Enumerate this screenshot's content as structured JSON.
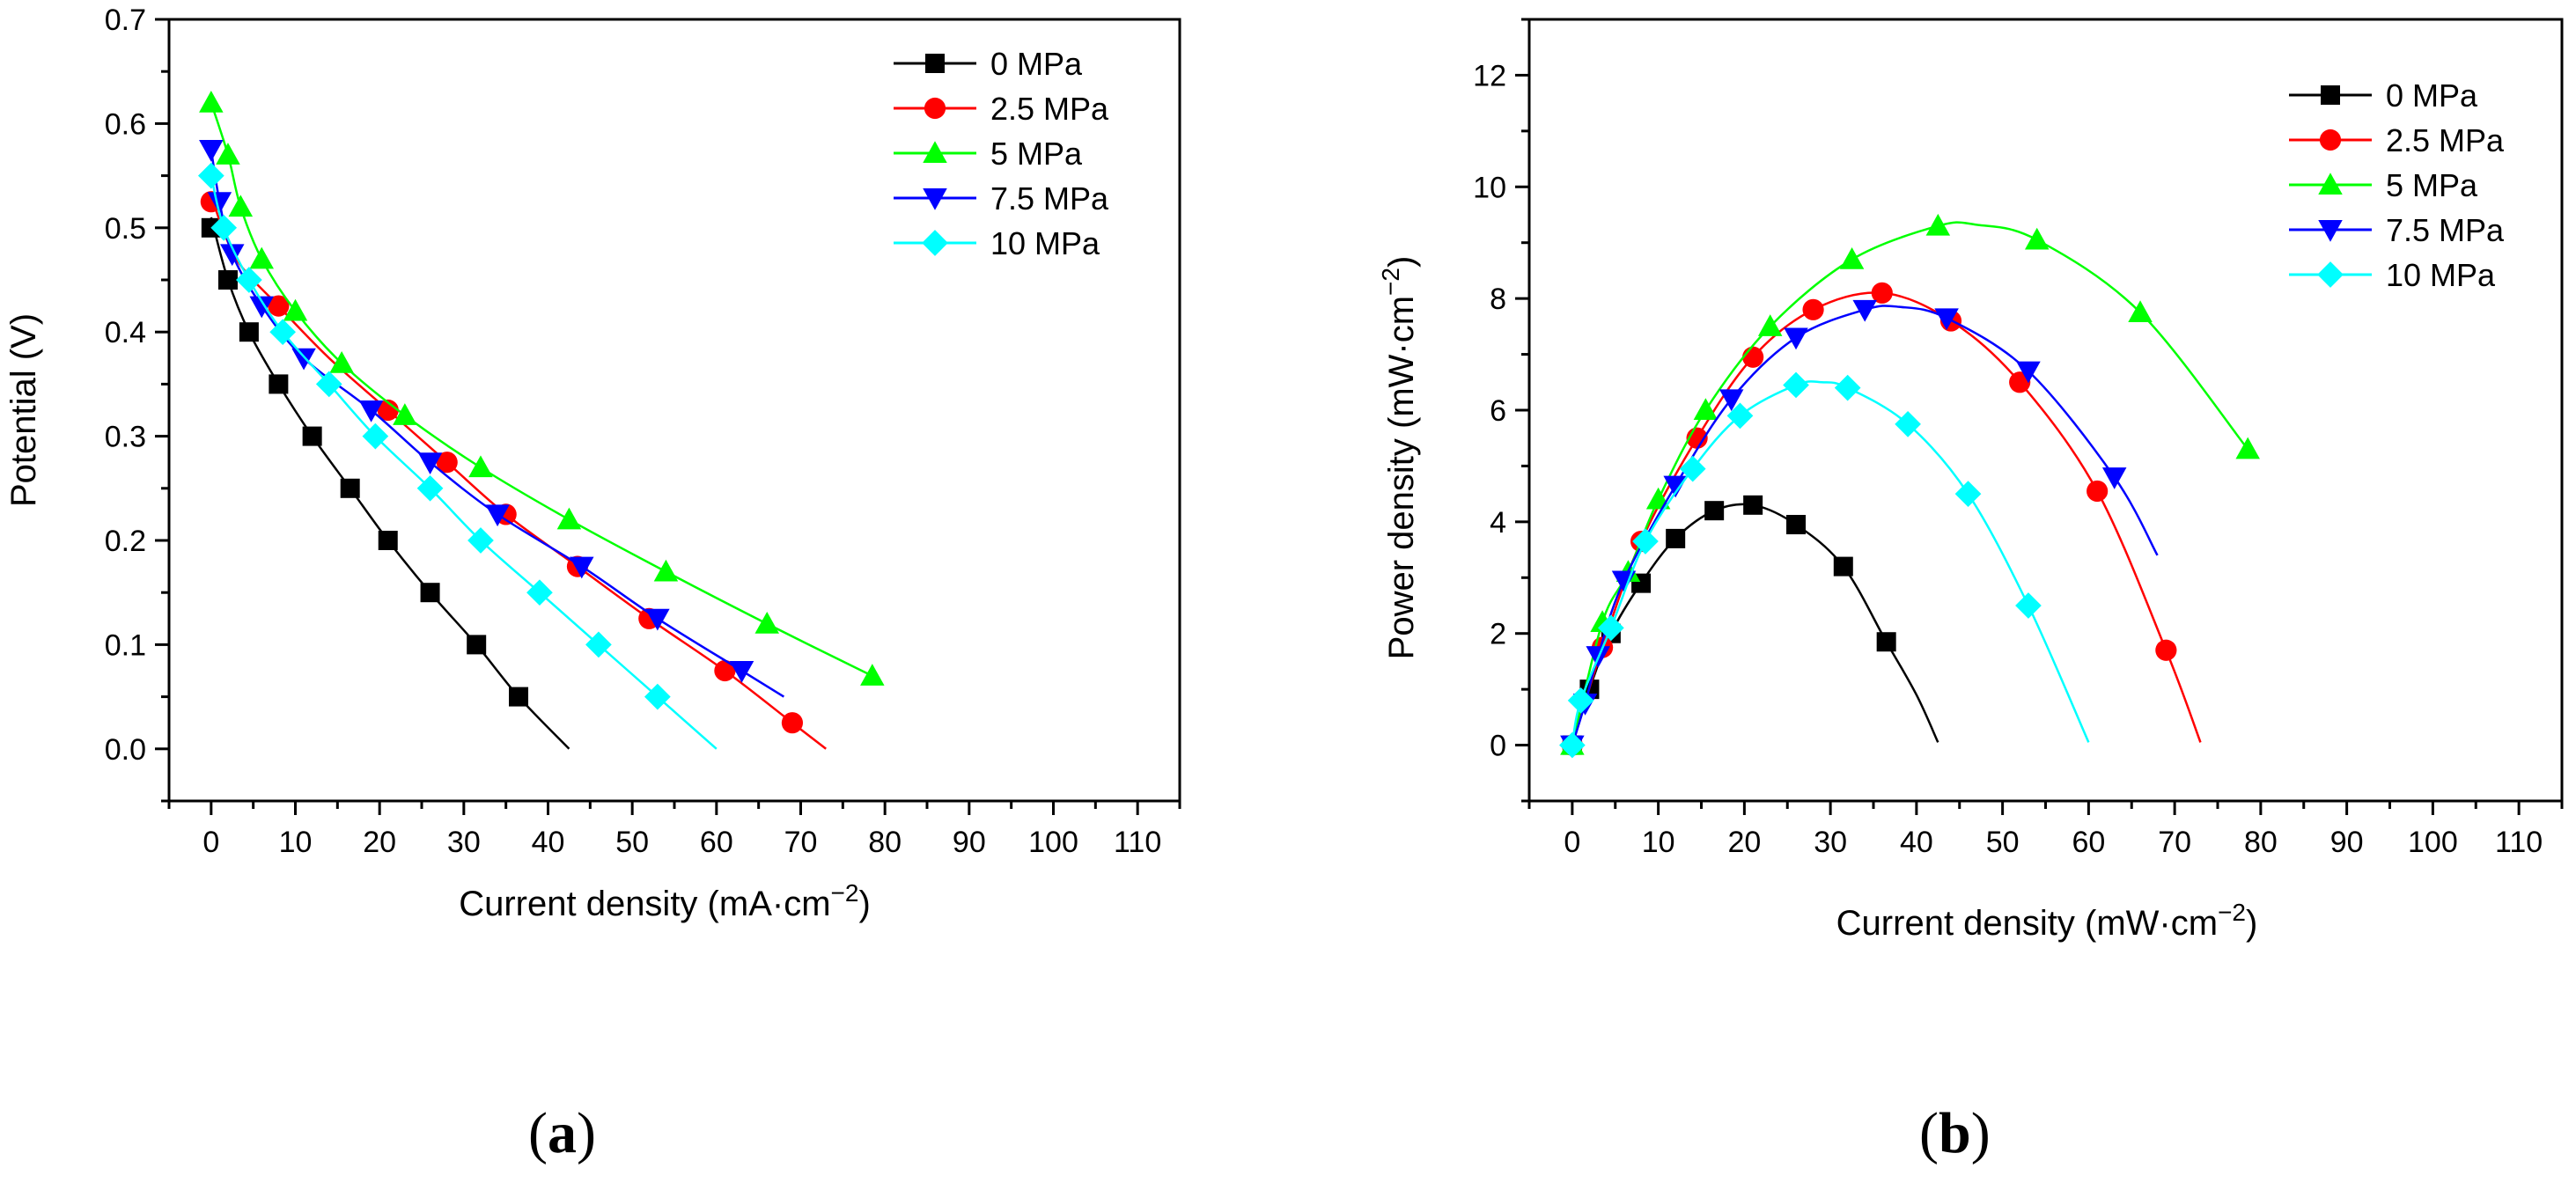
{
  "chart_data": [
    {
      "type": "line",
      "panel": "(a)",
      "panel_letter": "a",
      "xlabel": "Current density (mA·cm",
      "xlabel_sup": "−2",
      "xlabel_close": ")",
      "ylabel": "Potential (V)",
      "xlim": [
        -5,
        115
      ],
      "ylim": [
        -0.05,
        0.7
      ],
      "xticks": [
        0,
        10,
        20,
        30,
        40,
        50,
        60,
        70,
        80,
        90,
        100,
        110
      ],
      "yticks": [
        0.0,
        0.1,
        0.2,
        0.3,
        0.4,
        0.5,
        0.6,
        0.7
      ],
      "ytick_decimals": 1,
      "legend_position": "top-right",
      "series": [
        {
          "name": "0 MPa",
          "color": "#000000",
          "marker": "square",
          "x": [
            0,
            2,
            4.5,
            8,
            12,
            16.5,
            21,
            26,
            31.5,
            36.5
          ],
          "y": [
            0.5,
            0.45,
            0.4,
            0.35,
            0.3,
            0.25,
            0.2,
            0.15,
            0.1,
            0.05
          ],
          "fit_x": [
            0,
            2,
            4.5,
            8,
            12,
            16.5,
            21,
            26,
            31.5,
            36.5,
            42.5
          ],
          "fit_y": [
            0.51,
            0.45,
            0.4,
            0.35,
            0.3,
            0.25,
            0.2,
            0.15,
            0.1,
            0.05,
            0.0
          ]
        },
        {
          "name": "2.5 MPa",
          "color": "#ff0000",
          "marker": "circle",
          "x": [
            0,
            8,
            21,
            28,
            35,
            43.5,
            52,
            61,
            69
          ],
          "y": [
            0.525,
            0.425,
            0.325,
            0.275,
            0.225,
            0.175,
            0.125,
            0.075,
            0.025
          ],
          "fit_x": [
            0,
            3,
            8,
            14,
            21,
            28,
            35,
            43.5,
            52,
            61,
            69,
            73
          ],
          "fit_y": [
            0.53,
            0.47,
            0.425,
            0.375,
            0.325,
            0.275,
            0.225,
            0.175,
            0.125,
            0.075,
            0.025,
            0.0
          ]
        },
        {
          "name": "5 MPa",
          "color": "#00ff00",
          "marker": "triangle-up",
          "x": [
            0,
            2,
            3.5,
            6,
            10,
            15.5,
            23,
            32,
            42.5,
            54,
            66,
            78.5
          ],
          "y": [
            0.62,
            0.57,
            0.52,
            0.47,
            0.42,
            0.37,
            0.32,
            0.27,
            0.22,
            0.17,
            0.12,
            0.07
          ],
          "fit_x": [
            0,
            2,
            3.5,
            6,
            10,
            15.5,
            23,
            32,
            42.5,
            54,
            66,
            78.5
          ],
          "fit_y": [
            0.62,
            0.57,
            0.52,
            0.47,
            0.42,
            0.37,
            0.32,
            0.27,
            0.22,
            0.17,
            0.12,
            0.07
          ]
        },
        {
          "name": "7.5 MPa",
          "color": "#0000ff",
          "marker": "triangle-down",
          "x": [
            0,
            1,
            2.5,
            6,
            11,
            19,
            26,
            34,
            44,
            53,
            63
          ],
          "y": [
            0.575,
            0.525,
            0.475,
            0.425,
            0.375,
            0.325,
            0.275,
            0.225,
            0.175,
            0.125,
            0.075
          ],
          "fit_x": [
            0,
            1,
            2.5,
            6,
            11,
            19,
            26,
            34,
            44,
            53,
            63,
            68
          ],
          "fit_y": [
            0.575,
            0.525,
            0.475,
            0.425,
            0.375,
            0.325,
            0.275,
            0.225,
            0.175,
            0.125,
            0.075,
            0.05
          ]
        },
        {
          "name": "10 MPa",
          "color": "#00ffff",
          "marker": "diamond",
          "x": [
            0,
            1.5,
            4.5,
            8.5,
            14,
            19.5,
            26,
            32,
            39,
            46,
            53
          ],
          "y": [
            0.55,
            0.5,
            0.45,
            0.4,
            0.35,
            0.3,
            0.25,
            0.2,
            0.15,
            0.1,
            0.05
          ],
          "fit_x": [
            0,
            1.5,
            4.5,
            8.5,
            14,
            19.5,
            26,
            32,
            39,
            46,
            53,
            60
          ],
          "fit_y": [
            0.55,
            0.5,
            0.45,
            0.4,
            0.35,
            0.3,
            0.25,
            0.2,
            0.15,
            0.1,
            0.05,
            0.0
          ]
        }
      ]
    },
    {
      "type": "line",
      "panel": "(b)",
      "panel_letter": "b",
      "xlabel": "Current density (mW·cm",
      "xlabel_sup": "−2",
      "xlabel_close": ")",
      "ylabel": "Power density (mW·cm",
      "ylabel_sup": "−2",
      "ylabel_close": ")",
      "xlim": [
        -5,
        115
      ],
      "ylim": [
        -1,
        13
      ],
      "xticks": [
        0,
        10,
        20,
        30,
        40,
        50,
        60,
        70,
        80,
        90,
        100,
        110
      ],
      "yticks": [
        0,
        2,
        4,
        6,
        8,
        10,
        12
      ],
      "ytick_decimals": 0,
      "legend_position": "top-right",
      "series": [
        {
          "name": "0 MPa",
          "color": "#000000",
          "marker": "square",
          "x": [
            0,
            2,
            4.5,
            8,
            12,
            16.5,
            21,
            26,
            31.5,
            36.5
          ],
          "y": [
            0,
            1.0,
            2.0,
            2.9,
            3.7,
            4.2,
            4.3,
            3.95,
            3.2,
            1.85
          ],
          "fit_x": [
            0,
            2,
            4.5,
            8,
            12,
            16.5,
            21,
            26,
            31.5,
            36.5,
            40,
            42.5
          ],
          "fit_y": [
            0,
            1.0,
            2.0,
            2.9,
            3.7,
            4.2,
            4.3,
            3.95,
            3.2,
            1.85,
            0.9,
            0.05
          ]
        },
        {
          "name": "2.5 MPa",
          "color": "#ff0000",
          "marker": "circle",
          "x": [
            0,
            3.5,
            8,
            14.5,
            21,
            28,
            36,
            44,
            52,
            61,
            69
          ],
          "y": [
            0,
            1.75,
            3.65,
            5.5,
            6.95,
            7.8,
            8.1,
            7.6,
            6.5,
            4.55,
            1.7
          ],
          "fit_x": [
            0,
            3.5,
            8,
            14.5,
            21,
            28,
            36,
            44,
            52,
            61,
            69,
            73
          ],
          "fit_y": [
            0,
            1.75,
            3.65,
            5.5,
            6.95,
            7.8,
            8.1,
            7.6,
            6.5,
            4.55,
            1.7,
            0.05
          ]
        },
        {
          "name": "5 MPa",
          "color": "#00ff00",
          "marker": "triangle-up",
          "x": [
            0,
            3.5,
            6.5,
            10,
            15.5,
            23,
            32.5,
            42.5,
            54,
            66,
            78.5
          ],
          "y": [
            0,
            2.2,
            3.1,
            4.4,
            6.0,
            7.5,
            8.7,
            9.3,
            9.05,
            7.75,
            5.3
          ],
          "fit_x": [
            0,
            3.5,
            6.5,
            10,
            15.5,
            23,
            32.5,
            42.5,
            47,
            54,
            66,
            78.5
          ],
          "fit_y": [
            0,
            2.2,
            3.1,
            4.4,
            6.0,
            7.5,
            8.7,
            9.3,
            9.32,
            9.05,
            7.75,
            5.3
          ]
        },
        {
          "name": "7.5 MPa",
          "color": "#0000ff",
          "marker": "triangle-down",
          "x": [
            0,
            1.5,
            3,
            6,
            12,
            18.5,
            26,
            34,
            43.5,
            53,
            63
          ],
          "y": [
            0,
            0.75,
            1.6,
            2.95,
            4.65,
            6.2,
            7.3,
            7.8,
            7.65,
            6.7,
            4.8
          ],
          "fit_x": [
            0,
            1.5,
            3,
            6,
            12,
            18.5,
            26,
            34,
            38,
            43.5,
            53,
            63,
            68
          ],
          "fit_y": [
            0,
            0.75,
            1.6,
            2.95,
            4.65,
            6.2,
            7.3,
            7.8,
            7.85,
            7.65,
            6.7,
            4.8,
            3.4
          ]
        },
        {
          "name": "10 MPa",
          "color": "#00ffff",
          "marker": "diamond",
          "x": [
            0,
            1,
            4.5,
            8.5,
            14,
            19.5,
            26,
            32,
            39,
            46,
            53
          ],
          "y": [
            0,
            0.8,
            2.1,
            3.65,
            4.95,
            5.9,
            6.45,
            6.4,
            5.75,
            4.5,
            2.5
          ],
          "fit_x": [
            0,
            1,
            4.5,
            8.5,
            14,
            19.5,
            26,
            29,
            32,
            39,
            46,
            53,
            60
          ],
          "fit_y": [
            0,
            0.8,
            2.1,
            3.65,
            4.95,
            5.9,
            6.45,
            6.5,
            6.4,
            5.75,
            4.5,
            2.5,
            0.05
          ]
        }
      ]
    }
  ]
}
